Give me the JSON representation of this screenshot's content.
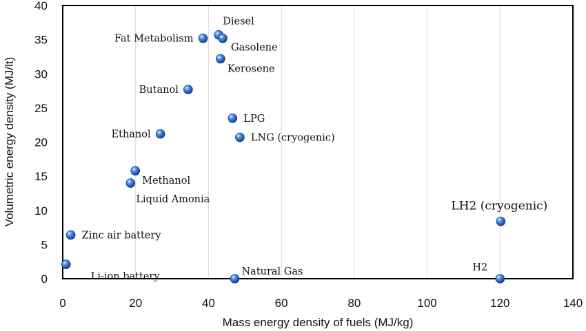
{
  "chart_data": {
    "type": "scatter",
    "xlabel": "Mass energy density of fuels (MJ/kg)",
    "ylabel": "Volumetric energy density (MJ/lt)",
    "xlim": [
      0,
      140
    ],
    "ylim": [
      0,
      40
    ],
    "xticks": [
      "0",
      "20",
      "40",
      "60",
      "80",
      "100",
      "120",
      "140"
    ],
    "yticks": [
      "0",
      "5",
      "10",
      "15",
      "20",
      "25",
      "30",
      "35",
      "40"
    ],
    "grid": "vertical",
    "marker_color": "#2f6fd6",
    "points": [
      {
        "label": "Fat Metabolism",
        "x": 38.5,
        "y": 35.2,
        "label_pos": "left"
      },
      {
        "label": "Diesel",
        "x": 42.8,
        "y": 35.7,
        "label_pos": "none"
      },
      {
        "label": "Gasolene",
        "x": 43.9,
        "y": 35.2,
        "label_pos": "none"
      },
      {
        "label": "Kerosene",
        "x": 43.3,
        "y": 32.2,
        "label_pos": "below-right"
      },
      {
        "label": "Butanol",
        "x": 34.4,
        "y": 27.7,
        "label_pos": "left"
      },
      {
        "label": "LPG",
        "x": 46.6,
        "y": 23.5,
        "label_pos": "right"
      },
      {
        "label": "Ethanol",
        "x": 26.8,
        "y": 21.2,
        "label_pos": "left"
      },
      {
        "label": "LNG (cryogenic)",
        "x": 48.6,
        "y": 20.7,
        "label_pos": "right"
      },
      {
        "label": "Methanol",
        "x": 19.9,
        "y": 15.8,
        "label_pos": "below-right"
      },
      {
        "label": "Liquid Amonia",
        "x": 18.6,
        "y": 14.0,
        "label_pos": "below"
      },
      {
        "label": "LH2 (cryogenic)",
        "x": 120.2,
        "y": 8.4,
        "label_pos": "above"
      },
      {
        "label": "Zinc air battery",
        "x": 2.2,
        "y": 6.4,
        "label_pos": "right"
      },
      {
        "label": "Li-ion battery",
        "x": 0.9,
        "y": 2.1,
        "label_pos": "below-right"
      },
      {
        "label": "Natural Gas",
        "x": 47.2,
        "y": 0.0,
        "label_pos": "above-right"
      },
      {
        "label": "H2",
        "x": 120.0,
        "y": 0.0,
        "label_pos": "above-left"
      }
    ],
    "annotations": [
      {
        "text": "Diesel",
        "near": "Diesel",
        "placement": "above-right"
      },
      {
        "text": "Gasolene",
        "near": "Gasolene",
        "placement": "below-right"
      }
    ]
  }
}
